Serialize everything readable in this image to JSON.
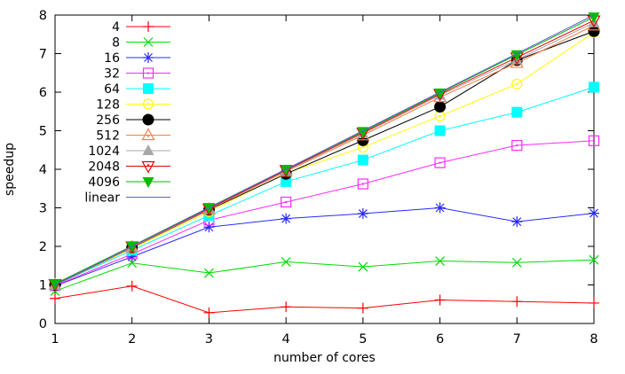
{
  "chart_data": {
    "type": "line",
    "title": "",
    "xlabel": "number of cores",
    "ylabel": "speedup",
    "xlim": [
      1,
      8
    ],
    "ylim": [
      0,
      8
    ],
    "xticks": [
      1,
      2,
      3,
      4,
      5,
      6,
      7,
      8
    ],
    "yticks": [
      0,
      1,
      2,
      3,
      4,
      5,
      6,
      7,
      8
    ],
    "grid": false,
    "legend_position": "top-left-inside",
    "x": [
      1,
      2,
      3,
      4,
      5,
      6,
      7,
      8
    ],
    "series": [
      {
        "name": "4",
        "color": "#ff0000",
        "marker": "plus",
        "values": [
          0.65,
          0.97,
          0.28,
          0.43,
          0.4,
          0.61,
          0.57,
          0.53
        ]
      },
      {
        "name": "8",
        "color": "#00dd00",
        "marker": "cross",
        "values": [
          0.84,
          1.57,
          1.31,
          1.6,
          1.47,
          1.62,
          1.58,
          1.65
        ]
      },
      {
        "name": "16",
        "color": "#2929ff",
        "marker": "asterisk",
        "values": [
          0.97,
          1.73,
          2.5,
          2.72,
          2.85,
          3.0,
          2.64,
          2.86
        ]
      },
      {
        "name": "32",
        "color": "#ff29ff",
        "marker": "square-open",
        "values": [
          0.98,
          1.8,
          2.68,
          3.15,
          3.62,
          4.17,
          4.62,
          4.74
        ]
      },
      {
        "name": "64",
        "color": "#00ffff",
        "marker": "square-filled",
        "values": [
          1.0,
          1.9,
          2.8,
          3.68,
          4.24,
          5.0,
          5.48,
          6.13
        ]
      },
      {
        "name": "128",
        "color": "#ffff00",
        "marker": "circle-open",
        "values": [
          1.0,
          1.95,
          2.9,
          3.9,
          4.57,
          5.38,
          6.21,
          7.55
        ]
      },
      {
        "name": "256",
        "color": "#000000",
        "marker": "circle-filled",
        "values": [
          1.0,
          1.97,
          2.95,
          3.88,
          4.75,
          5.62,
          6.83,
          7.58
        ]
      },
      {
        "name": "512",
        "color": "#ff7d40",
        "marker": "triangle-open",
        "values": [
          1.0,
          1.98,
          2.96,
          3.94,
          4.88,
          5.87,
          6.76,
          7.73
        ]
      },
      {
        "name": "1024",
        "color": "#a8a8a8",
        "marker": "triangle-filled",
        "values": [
          1.01,
          1.99,
          2.97,
          3.96,
          4.92,
          5.92,
          6.84,
          7.8
        ]
      },
      {
        "name": "2048",
        "color": "#e60000",
        "marker": "triangle-down-open",
        "values": [
          1.02,
          2.0,
          2.98,
          3.98,
          4.95,
          5.95,
          6.9,
          7.86
        ]
      },
      {
        "name": "4096",
        "color": "#00bb00",
        "marker": "triangle-down-filled",
        "values": [
          1.03,
          2.01,
          3.01,
          4.0,
          4.98,
          5.98,
          6.97,
          7.95
        ]
      },
      {
        "name": "linear",
        "color": "#5c5cdd",
        "marker": "none",
        "values": [
          1,
          2,
          3,
          4,
          5,
          6,
          7,
          8
        ]
      }
    ]
  }
}
